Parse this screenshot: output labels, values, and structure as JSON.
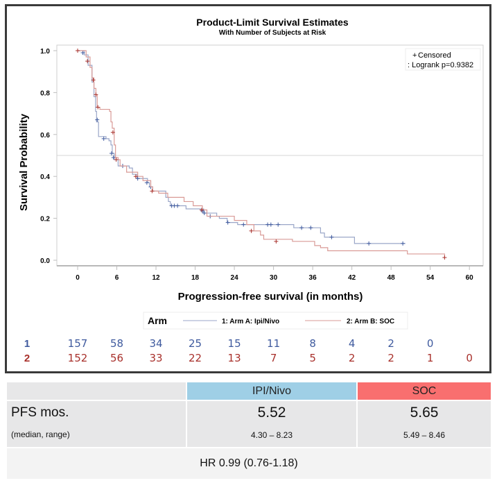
{
  "colors": {
    "arm_a": "#3f5a9e",
    "arm_b": "#a8302b",
    "arm_a_line": "#9aa6c8",
    "arm_b_line": "#d99a96",
    "header_a_bg": "#9fcfe6",
    "header_b_bg": "#f96f6f"
  },
  "chart_data": {
    "type": "line",
    "title": "Product-Limit Survival Estimates",
    "subtitle": "With Number of Subjects at Risk",
    "xlabel": "Progression-free survival (in months)",
    "ylabel": "Survival Probability",
    "xlim": [
      -4,
      64
    ],
    "ylim": [
      0.0,
      1.0
    ],
    "x_ticks": [
      0,
      6,
      12,
      18,
      24,
      30,
      36,
      42,
      48,
      54,
      60
    ],
    "x_tick_labels": [
      "0",
      "6",
      "12",
      "18",
      "24",
      "30",
      "36",
      "42",
      "48",
      "54",
      "60"
    ],
    "y_ticks": [
      0.0,
      0.2,
      0.4,
      0.6,
      0.8,
      1.0
    ],
    "y_tick_labels": [
      "0.0",
      "0.2",
      "0.4",
      "0.6",
      "0.8",
      "1.0"
    ],
    "reference_line_y": 0.5,
    "grid": false,
    "inset": {
      "censored_marker": "+",
      "censored_label": "Censored",
      "logrank_label": ": Logrank p=0.9382"
    },
    "legend": {
      "title": "Arm",
      "placement": "bottom",
      "items": [
        "1: Arm A: Ipi/Nivo",
        "2: Arm B: SOC"
      ]
    },
    "series": [
      {
        "name": "1: Arm A: Ipi/Nivo",
        "steps": [
          [
            0,
            1.0
          ],
          [
            1.0,
            0.98
          ],
          [
            1.6,
            0.93
          ],
          [
            2.2,
            0.85
          ],
          [
            2.5,
            0.78
          ],
          [
            2.75,
            0.71
          ],
          [
            2.9,
            0.66
          ],
          [
            3.2,
            0.59
          ],
          [
            4.35,
            0.58
          ],
          [
            4.8,
            0.57
          ],
          [
            5.1,
            0.55
          ],
          [
            5.3,
            0.51
          ],
          [
            5.6,
            0.48
          ],
          [
            6.2,
            0.45
          ],
          [
            7.9,
            0.44
          ],
          [
            8.4,
            0.41
          ],
          [
            9.1,
            0.39
          ],
          [
            10.7,
            0.37
          ],
          [
            11.0,
            0.35
          ],
          [
            11.5,
            0.33
          ],
          [
            13.5,
            0.3
          ],
          [
            13.9,
            0.28
          ],
          [
            14.2,
            0.26
          ],
          [
            16.6,
            0.245
          ],
          [
            19.3,
            0.225
          ],
          [
            21.3,
            0.21
          ],
          [
            21.7,
            0.2
          ],
          [
            22.9,
            0.18
          ],
          [
            24.5,
            0.17
          ],
          [
            33.1,
            0.155
          ],
          [
            37.2,
            0.13
          ],
          [
            37.8,
            0.11
          ],
          [
            42.4,
            0.08
          ],
          [
            50.2,
            0.08
          ]
        ],
        "censored": [
          [
            0.8,
            0.99
          ],
          [
            3.0,
            0.67
          ],
          [
            4.0,
            0.58
          ],
          [
            5.2,
            0.51
          ],
          [
            5.5,
            0.49
          ],
          [
            6.9,
            0.45
          ],
          [
            9.2,
            0.39
          ],
          [
            10.6,
            0.37
          ],
          [
            11.2,
            0.35
          ],
          [
            14.4,
            0.26
          ],
          [
            14.8,
            0.26
          ],
          [
            15.3,
            0.26
          ],
          [
            19.1,
            0.235
          ],
          [
            19.4,
            0.225
          ],
          [
            20.3,
            0.21
          ],
          [
            23.0,
            0.18
          ],
          [
            25.4,
            0.17
          ],
          [
            29.1,
            0.17
          ],
          [
            29.6,
            0.17
          ],
          [
            30.7,
            0.17
          ],
          [
            34.3,
            0.155
          ],
          [
            35.7,
            0.155
          ],
          [
            38.9,
            0.11
          ],
          [
            44.6,
            0.08
          ],
          [
            49.8,
            0.08
          ]
        ]
      },
      {
        "name": "2: Arm B: SOC",
        "steps": [
          [
            0,
            1.0
          ],
          [
            1.3,
            0.97
          ],
          [
            1.9,
            0.92
          ],
          [
            2.2,
            0.87
          ],
          [
            2.5,
            0.82
          ],
          [
            2.8,
            0.79
          ],
          [
            3.0,
            0.73
          ],
          [
            3.4,
            0.72
          ],
          [
            4.9,
            0.71
          ],
          [
            5.1,
            0.66
          ],
          [
            5.3,
            0.63
          ],
          [
            5.6,
            0.55
          ],
          [
            5.8,
            0.49
          ],
          [
            6.2,
            0.48
          ],
          [
            6.5,
            0.45
          ],
          [
            7.5,
            0.42
          ],
          [
            9.2,
            0.4
          ],
          [
            10.0,
            0.38
          ],
          [
            11.2,
            0.35
          ],
          [
            11.5,
            0.33
          ],
          [
            12.4,
            0.32
          ],
          [
            13.8,
            0.3
          ],
          [
            16.3,
            0.28
          ],
          [
            17.7,
            0.26
          ],
          [
            19.1,
            0.24
          ],
          [
            19.8,
            0.21
          ],
          [
            24.0,
            0.19
          ],
          [
            25.9,
            0.17
          ],
          [
            27.0,
            0.14
          ],
          [
            28.0,
            0.12
          ],
          [
            28.5,
            0.1
          ],
          [
            32.9,
            0.09
          ],
          [
            36.3,
            0.07
          ],
          [
            37.2,
            0.06
          ],
          [
            38.3,
            0.045
          ],
          [
            50.5,
            0.03
          ],
          [
            56.2,
            0.013
          ]
        ],
        "censored": [
          [
            0,
            1.0
          ],
          [
            1.5,
            0.95
          ],
          [
            2.4,
            0.86
          ],
          [
            2.8,
            0.79
          ],
          [
            3.1,
            0.73
          ],
          [
            5.4,
            0.61
          ],
          [
            5.9,
            0.48
          ],
          [
            8.9,
            0.4
          ],
          [
            11.4,
            0.33
          ],
          [
            19.0,
            0.24
          ],
          [
            26.6,
            0.14
          ],
          [
            30.4,
            0.09
          ],
          [
            56.2,
            0.013
          ]
        ]
      }
    ],
    "at_risk": {
      "times": [
        0,
        6,
        12,
        18,
        24,
        30,
        36,
        42,
        48,
        54,
        60
      ],
      "rows": [
        {
          "label": "1",
          "values": [
            "157",
            "58",
            "34",
            "25",
            "15",
            "11",
            "8",
            "4",
            "2",
            "0",
            ""
          ]
        },
        {
          "label": "2",
          "values": [
            "152",
            "56",
            "33",
            "22",
            "13",
            "7",
            "5",
            "2",
            "2",
            "1",
            "0"
          ]
        }
      ]
    }
  },
  "summary_table": {
    "columns": [
      "",
      "IPI/Nivo",
      "SOC"
    ],
    "row_label_main": "PFS mos.",
    "row_label_sub": "(median, range)",
    "arm_a": {
      "median": "5.52",
      "range": "4.30 – 8.23"
    },
    "arm_b": {
      "median": "5.65",
      "range": "5.49 – 8.46"
    },
    "hazard_ratio": "HR 0.99 (0.76-1.18)"
  }
}
